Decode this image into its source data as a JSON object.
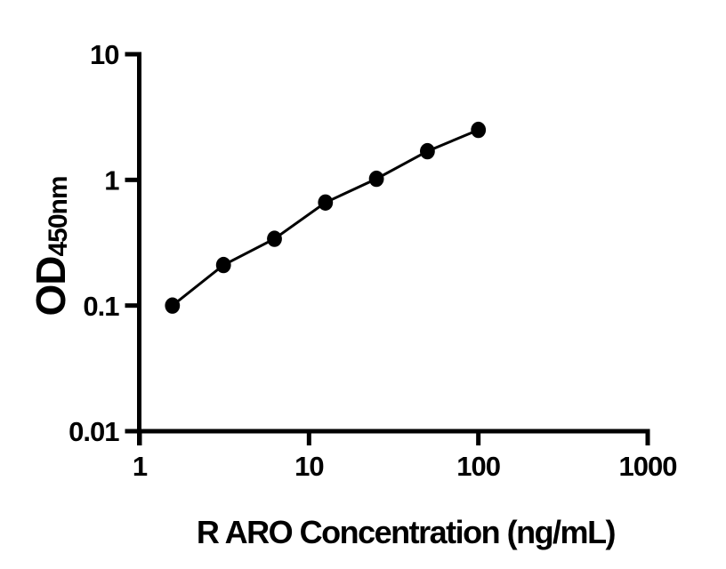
{
  "figure": {
    "background_color": "#ffffff",
    "foreground_color": "#000000"
  },
  "chart_data": {
    "type": "scatter",
    "subtype": "log-log standard curve with connecting line",
    "title": "",
    "xlabel": "R ARO Concentration (ng/mL)",
    "ylabel_main": "OD",
    "ylabel_sub": "450nm",
    "x_scale": "log10",
    "y_scale": "log10",
    "xlim": [
      1,
      1000
    ],
    "ylim": [
      0.01,
      10
    ],
    "x_ticks": [
      "1",
      "10",
      "100",
      "1000"
    ],
    "y_ticks": [
      "10",
      "1",
      "0.1",
      "0.01"
    ],
    "grid": false,
    "legend_position": "none",
    "marker": "filled-circle",
    "line_color": "#000000",
    "marker_color": "#000000",
    "series": [
      {
        "points": [
          {
            "conc": 1.56,
            "od": 0.1
          },
          {
            "conc": 3.125,
            "od": 0.21
          },
          {
            "conc": 6.25,
            "od": 0.34
          },
          {
            "conc": 12.5,
            "od": 0.66
          },
          {
            "conc": 25,
            "od": 1.02
          },
          {
            "conc": 50,
            "od": 1.69
          },
          {
            "conc": 100,
            "od": 2.5
          }
        ]
      }
    ]
  }
}
